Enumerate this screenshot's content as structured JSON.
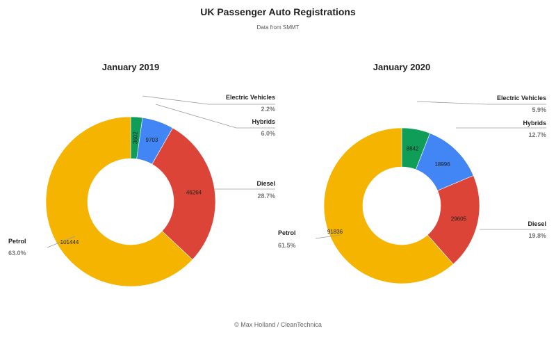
{
  "title": "UK Passenger Auto Registrations",
  "subtitle": "Data from SMMT",
  "credit": "© Max Holland / CleanTechnica",
  "colors": {
    "Electric Vehicles": "#0f9d58",
    "Hybrids": "#4285f4",
    "Diesel": "#db4437",
    "Petrol": "#f4b400"
  },
  "chart_data": [
    {
      "type": "pie",
      "donut": true,
      "title": "January 2019",
      "categories": [
        "Electric Vehicles",
        "Hybrids",
        "Diesel",
        "Petrol"
      ],
      "values": [
        3602,
        9703,
        46264,
        101444
      ],
      "percent_labels": [
        "2.2%",
        "6.0%",
        "28.7%",
        "63.0%"
      ],
      "legend": "labels outside with leader lines"
    },
    {
      "type": "pie",
      "donut": true,
      "title": "January 2020",
      "categories": [
        "Electric Vehicles",
        "Hybrids",
        "Diesel",
        "Petrol"
      ],
      "values": [
        8842,
        18996,
        29605,
        91836
      ],
      "percent_labels": [
        "5.9%",
        "12.7%",
        "19.8%",
        "61.5%"
      ],
      "legend": "labels outside with leader lines"
    }
  ]
}
